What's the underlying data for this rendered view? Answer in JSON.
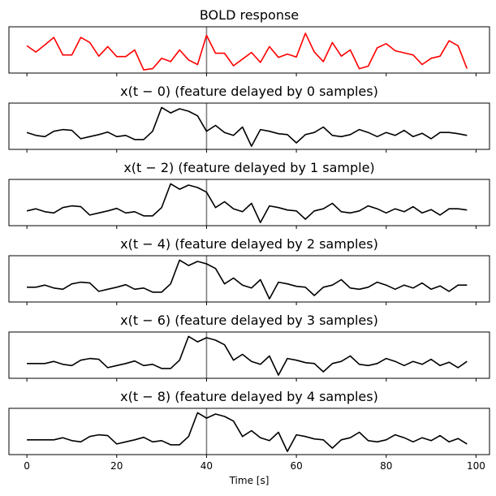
{
  "chart_data": {
    "type": "line",
    "xlabel": "Time [s]",
    "xlim": [
      -4,
      103
    ],
    "xticks": [
      0,
      20,
      40,
      60,
      80,
      100
    ],
    "marker_line_x": 40,
    "colors": {
      "bold": "#ff0000",
      "feature": "#000000",
      "marker": "#808080"
    },
    "panels": [
      {
        "title": "BOLD response",
        "color": "#ff0000",
        "x": [
          0,
          2,
          4,
          6,
          8,
          10,
          12,
          14,
          16,
          18,
          20,
          22,
          24,
          26,
          28,
          30,
          32,
          34,
          36,
          38,
          40,
          42,
          44,
          46,
          48,
          50,
          52,
          54,
          56,
          58,
          60,
          62,
          64,
          66,
          68,
          70,
          72,
          74,
          76,
          78,
          80,
          82,
          84,
          86,
          88,
          90,
          92,
          94,
          96,
          98
        ],
        "y": [
          0.6,
          0.45,
          0.62,
          0.8,
          0.38,
          0.38,
          0.8,
          0.68,
          0.35,
          0.58,
          0.34,
          0.34,
          0.5,
          0.02,
          0.05,
          0.3,
          0.22,
          0.5,
          0.26,
          0.15,
          0.85,
          0.42,
          0.42,
          0.12,
          0.28,
          0.44,
          0.2,
          0.58,
          0.32,
          0.4,
          0.33,
          0.9,
          0.45,
          0.22,
          0.68,
          0.35,
          0.5,
          0.05,
          0.11,
          0.55,
          0.65,
          0.48,
          0.43,
          0.38,
          0.15,
          0.3,
          0.35,
          0.72,
          0.6,
          0.05
        ]
      },
      {
        "title": "x(t − 0) (feature delayed by 0 samples)",
        "color": "#000000",
        "x": [
          0,
          2,
          4,
          6,
          8,
          10,
          12,
          14,
          16,
          18,
          20,
          22,
          24,
          26,
          28,
          30,
          32,
          34,
          36,
          38,
          40,
          42,
          44,
          46,
          48,
          50,
          52,
          54,
          56,
          58,
          60,
          62,
          64,
          66,
          68,
          70,
          72,
          74,
          76,
          78,
          80,
          82,
          84,
          86,
          88,
          90,
          92,
          94,
          96,
          98
        ],
        "y": [
          0.35,
          0.28,
          0.25,
          0.38,
          0.42,
          0.4,
          0.2,
          0.25,
          0.3,
          0.36,
          0.25,
          0.28,
          0.18,
          0.18,
          0.38,
          0.95,
          0.82,
          0.92,
          0.86,
          0.75,
          0.38,
          0.52,
          0.35,
          0.28,
          0.48,
          0.02,
          0.42,
          0.38,
          0.32,
          0.3,
          0.1,
          0.3,
          0.35,
          0.48,
          0.28,
          0.25,
          0.3,
          0.42,
          0.35,
          0.25,
          0.35,
          0.28,
          0.4,
          0.25,
          0.33,
          0.2,
          0.35,
          0.35,
          0.32,
          0.28
        ]
      },
      {
        "title": "x(t − 2) (feature delayed by 1 sample)",
        "color": "#000000",
        "x": [
          0,
          2,
          4,
          6,
          8,
          10,
          12,
          14,
          16,
          18,
          20,
          22,
          24,
          26,
          28,
          30,
          32,
          34,
          36,
          38,
          40,
          42,
          44,
          46,
          48,
          50,
          52,
          54,
          56,
          58,
          60,
          62,
          64,
          66,
          68,
          70,
          72,
          74,
          76,
          78,
          80,
          82,
          84,
          86,
          88,
          90,
          92,
          94,
          96,
          98
        ],
        "y": [
          0.3,
          0.35,
          0.28,
          0.25,
          0.38,
          0.42,
          0.4,
          0.2,
          0.25,
          0.3,
          0.36,
          0.25,
          0.28,
          0.18,
          0.18,
          0.38,
          0.95,
          0.82,
          0.92,
          0.86,
          0.75,
          0.38,
          0.52,
          0.35,
          0.28,
          0.48,
          0.02,
          0.42,
          0.38,
          0.32,
          0.3,
          0.1,
          0.3,
          0.35,
          0.48,
          0.28,
          0.25,
          0.3,
          0.42,
          0.35,
          0.25,
          0.35,
          0.28,
          0.4,
          0.25,
          0.33,
          0.2,
          0.35,
          0.35,
          0.32
        ]
      },
      {
        "title": "x(t − 4) (feature delayed by 2 samples)",
        "color": "#000000",
        "x": [
          0,
          2,
          4,
          6,
          8,
          10,
          12,
          14,
          16,
          18,
          20,
          22,
          24,
          26,
          28,
          30,
          32,
          34,
          36,
          38,
          40,
          42,
          44,
          46,
          48,
          50,
          52,
          54,
          56,
          58,
          60,
          62,
          64,
          66,
          68,
          70,
          72,
          74,
          76,
          78,
          80,
          82,
          84,
          86,
          88,
          90,
          92,
          94,
          96,
          98
        ],
        "y": [
          0.3,
          0.3,
          0.35,
          0.28,
          0.25,
          0.38,
          0.42,
          0.4,
          0.2,
          0.25,
          0.3,
          0.36,
          0.25,
          0.28,
          0.18,
          0.18,
          0.38,
          0.95,
          0.82,
          0.92,
          0.86,
          0.75,
          0.38,
          0.52,
          0.35,
          0.28,
          0.48,
          0.02,
          0.42,
          0.38,
          0.32,
          0.3,
          0.1,
          0.3,
          0.35,
          0.48,
          0.28,
          0.25,
          0.3,
          0.42,
          0.35,
          0.25,
          0.35,
          0.28,
          0.4,
          0.25,
          0.33,
          0.2,
          0.35,
          0.35
        ]
      },
      {
        "title": "x(t − 6) (feature delayed by 3 samples)",
        "color": "#000000",
        "x": [
          0,
          2,
          4,
          6,
          8,
          10,
          12,
          14,
          16,
          18,
          20,
          22,
          24,
          26,
          28,
          30,
          32,
          34,
          36,
          38,
          40,
          42,
          44,
          46,
          48,
          50,
          52,
          54,
          56,
          58,
          60,
          62,
          64,
          66,
          68,
          70,
          72,
          74,
          76,
          78,
          80,
          82,
          84,
          86,
          88,
          90,
          92,
          94,
          96,
          98
        ],
        "y": [
          0.3,
          0.3,
          0.3,
          0.35,
          0.28,
          0.25,
          0.38,
          0.42,
          0.4,
          0.2,
          0.25,
          0.3,
          0.36,
          0.25,
          0.28,
          0.18,
          0.18,
          0.38,
          0.95,
          0.82,
          0.92,
          0.86,
          0.75,
          0.38,
          0.52,
          0.35,
          0.28,
          0.48,
          0.02,
          0.42,
          0.38,
          0.32,
          0.3,
          0.1,
          0.3,
          0.35,
          0.48,
          0.28,
          0.25,
          0.3,
          0.42,
          0.35,
          0.25,
          0.35,
          0.28,
          0.4,
          0.25,
          0.33,
          0.2,
          0.35
        ]
      },
      {
        "title": "x(t − 8) (feature delayed by 4 samples)",
        "color": "#000000",
        "x": [
          0,
          2,
          4,
          6,
          8,
          10,
          12,
          14,
          16,
          18,
          20,
          22,
          24,
          26,
          28,
          30,
          32,
          34,
          36,
          38,
          40,
          42,
          44,
          46,
          48,
          50,
          52,
          54,
          56,
          58,
          60,
          62,
          64,
          66,
          68,
          70,
          72,
          74,
          76,
          78,
          80,
          82,
          84,
          86,
          88,
          90,
          92,
          94,
          96,
          98
        ],
        "y": [
          0.3,
          0.3,
          0.3,
          0.3,
          0.35,
          0.28,
          0.25,
          0.38,
          0.42,
          0.4,
          0.2,
          0.25,
          0.3,
          0.36,
          0.25,
          0.28,
          0.18,
          0.18,
          0.38,
          0.95,
          0.82,
          0.92,
          0.86,
          0.75,
          0.38,
          0.52,
          0.35,
          0.28,
          0.48,
          0.02,
          0.42,
          0.38,
          0.32,
          0.3,
          0.1,
          0.3,
          0.35,
          0.48,
          0.28,
          0.25,
          0.3,
          0.42,
          0.35,
          0.25,
          0.35,
          0.28,
          0.4,
          0.25,
          0.33,
          0.2
        ]
      }
    ]
  }
}
